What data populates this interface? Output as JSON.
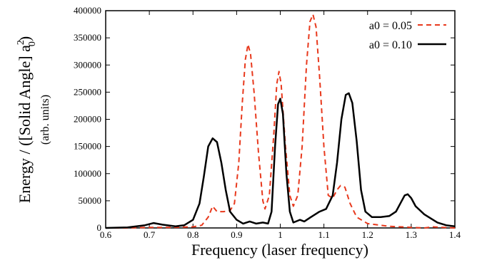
{
  "chart_data": {
    "type": "line",
    "title": "",
    "xlabel": "Frequency (laser frequency)",
    "ylabel": {
      "prefix": "Energy / ([Solid Angle] a",
      "superscript": "2",
      "subscript": "0",
      "suffix": ")",
      "unit_note": "(arb. units)"
    },
    "xlim": [
      0.6,
      1.4
    ],
    "ylim": [
      0,
      400000
    ],
    "xticks": [
      "0.6",
      "0.7",
      "0.8",
      "0.9",
      "1",
      "1.1",
      "1.2",
      "1.3",
      "1.4"
    ],
    "xtick_values": [
      0.6,
      0.7,
      0.8,
      0.9,
      1.0,
      1.1,
      1.2,
      1.3,
      1.4
    ],
    "yticks": [
      "0",
      "50000",
      "100000",
      "150000",
      "200000",
      "250000",
      "300000",
      "350000",
      "400000"
    ],
    "ytick_values": [
      0,
      50000,
      100000,
      150000,
      200000,
      250000,
      300000,
      350000,
      400000
    ],
    "grid": false,
    "legend_position": "top-right",
    "series": [
      {
        "name": "a0 = 0.05",
        "color": "#e8391d",
        "style": "dashed",
        "points": [
          [
            0.6,
            0
          ],
          [
            0.65,
            0
          ],
          [
            0.7,
            1000
          ],
          [
            0.75,
            1000
          ],
          [
            0.8,
            2000
          ],
          [
            0.82,
            5000
          ],
          [
            0.835,
            20000
          ],
          [
            0.845,
            40000
          ],
          [
            0.855,
            30000
          ],
          [
            0.87,
            30000
          ],
          [
            0.885,
            32000
          ],
          [
            0.895,
            45000
          ],
          [
            0.905,
            120000
          ],
          [
            0.913,
            230000
          ],
          [
            0.92,
            310000
          ],
          [
            0.926,
            338000
          ],
          [
            0.932,
            320000
          ],
          [
            0.94,
            250000
          ],
          [
            0.95,
            140000
          ],
          [
            0.96,
            50000
          ],
          [
            0.965,
            35000
          ],
          [
            0.975,
            60000
          ],
          [
            0.985,
            170000
          ],
          [
            0.992,
            265000
          ],
          [
            0.997,
            288000
          ],
          [
            1.002,
            265000
          ],
          [
            1.012,
            150000
          ],
          [
            1.022,
            60000
          ],
          [
            1.03,
            40000
          ],
          [
            1.04,
            60000
          ],
          [
            1.05,
            150000
          ],
          [
            1.06,
            300000
          ],
          [
            1.068,
            380000
          ],
          [
            1.075,
            393000
          ],
          [
            1.082,
            370000
          ],
          [
            1.09,
            280000
          ],
          [
            1.1,
            150000
          ],
          [
            1.11,
            60000
          ],
          [
            1.12,
            55000
          ],
          [
            1.13,
            70000
          ],
          [
            1.138,
            78000
          ],
          [
            1.148,
            75000
          ],
          [
            1.16,
            45000
          ],
          [
            1.175,
            20000
          ],
          [
            1.2,
            8000
          ],
          [
            1.25,
            3000
          ],
          [
            1.3,
            1000
          ],
          [
            1.33,
            0
          ],
          [
            1.35,
            2000
          ],
          [
            1.4,
            0
          ]
        ]
      },
      {
        "name": "a0 = 0.10",
        "color": "#000000",
        "style": "solid",
        "points": [
          [
            0.6,
            0
          ],
          [
            0.65,
            1000
          ],
          [
            0.69,
            5000
          ],
          [
            0.71,
            9000
          ],
          [
            0.73,
            6000
          ],
          [
            0.76,
            3000
          ],
          [
            0.78,
            5000
          ],
          [
            0.8,
            15000
          ],
          [
            0.815,
            45000
          ],
          [
            0.825,
            95000
          ],
          [
            0.835,
            150000
          ],
          [
            0.845,
            165000
          ],
          [
            0.855,
            158000
          ],
          [
            0.865,
            120000
          ],
          [
            0.875,
            70000
          ],
          [
            0.885,
            30000
          ],
          [
            0.9,
            15000
          ],
          [
            0.915,
            8000
          ],
          [
            0.93,
            12000
          ],
          [
            0.945,
            8000
          ],
          [
            0.96,
            10000
          ],
          [
            0.972,
            8000
          ],
          [
            0.98,
            30000
          ],
          [
            0.988,
            150000
          ],
          [
            0.995,
            228000
          ],
          [
            1.0,
            238000
          ],
          [
            1.006,
            210000
          ],
          [
            1.014,
            100000
          ],
          [
            1.022,
            30000
          ],
          [
            1.03,
            10000
          ],
          [
            1.045,
            15000
          ],
          [
            1.055,
            12000
          ],
          [
            1.07,
            20000
          ],
          [
            1.09,
            30000
          ],
          [
            1.105,
            35000
          ],
          [
            1.12,
            60000
          ],
          [
            1.13,
            120000
          ],
          [
            1.14,
            200000
          ],
          [
            1.15,
            245000
          ],
          [
            1.157,
            248000
          ],
          [
            1.165,
            230000
          ],
          [
            1.175,
            160000
          ],
          [
            1.185,
            70000
          ],
          [
            1.195,
            30000
          ],
          [
            1.21,
            20000
          ],
          [
            1.23,
            20000
          ],
          [
            1.25,
            22000
          ],
          [
            1.265,
            30000
          ],
          [
            1.275,
            45000
          ],
          [
            1.285,
            60000
          ],
          [
            1.292,
            62000
          ],
          [
            1.3,
            55000
          ],
          [
            1.31,
            40000
          ],
          [
            1.33,
            25000
          ],
          [
            1.36,
            10000
          ],
          [
            1.38,
            5000
          ],
          [
            1.4,
            3000
          ]
        ]
      }
    ]
  }
}
